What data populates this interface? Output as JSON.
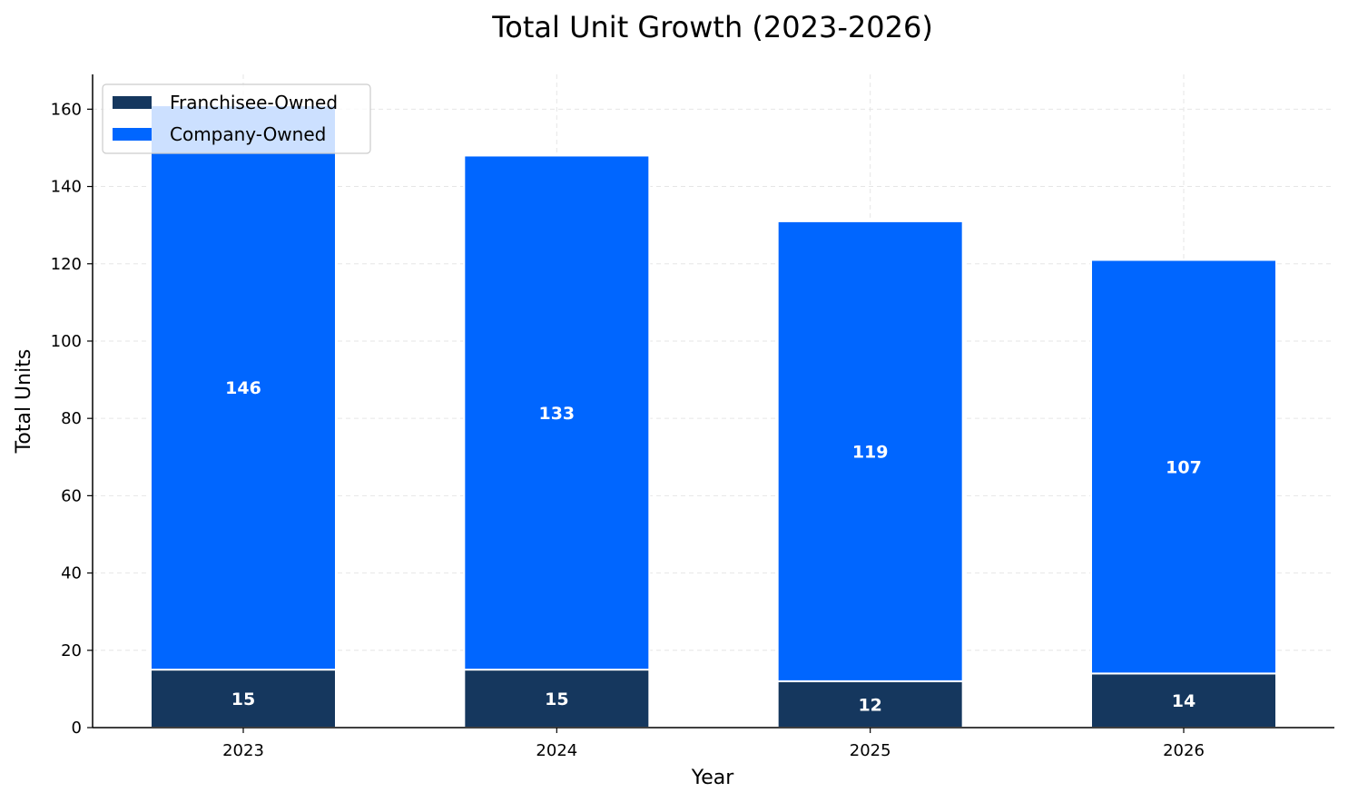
{
  "chart_data": {
    "type": "bar",
    "stacked": true,
    "title": "Total Unit Growth (2023-2026)",
    "xlabel": "Year",
    "ylabel": "Total Units",
    "categories": [
      "2023",
      "2024",
      "2025",
      "2026"
    ],
    "series": [
      {
        "name": "Franchisee-Owned",
        "values": [
          15,
          15,
          12,
          14
        ],
        "color": "#15375e"
      },
      {
        "name": "Company-Owned",
        "values": [
          146,
          133,
          119,
          107
        ],
        "color": "#0066ff"
      }
    ],
    "ylim": [
      0,
      169
    ],
    "yticks": [
      0,
      20,
      40,
      60,
      80,
      100,
      120,
      140,
      160
    ],
    "grid": true,
    "legend_position": "top-left"
  }
}
